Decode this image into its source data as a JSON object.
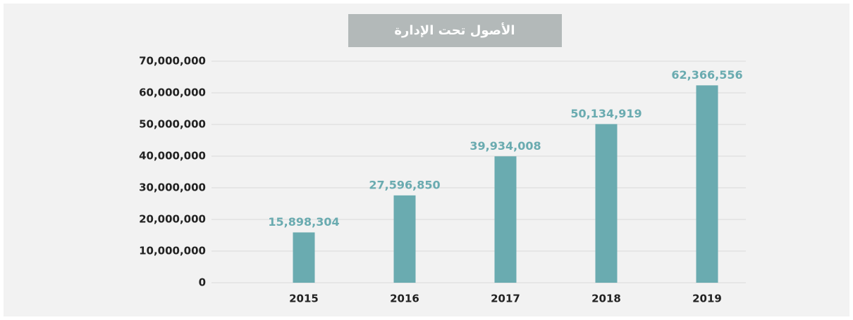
{
  "chart_data": {
    "type": "bar",
    "title": "الأصول تحت الإدارة",
    "categories": [
      "2015",
      "2016",
      "2017",
      "2018",
      "2019"
    ],
    "values": [
      15898304,
      27596850,
      39934008,
      50134919,
      62366556
    ],
    "value_labels": [
      "15,898,304",
      "27,596,850",
      "39,934,008",
      "50,134,919",
      "62,366,556"
    ],
    "color": "#6aabb0",
    "ylim": [
      0,
      70000000
    ],
    "yticks": [
      {
        "value": 0,
        "label": "0"
      },
      {
        "value": 10000000,
        "label": "10,000,000"
      },
      {
        "value": 20000000,
        "label": "20,000,000"
      },
      {
        "value": 30000000,
        "label": "30,000,000"
      },
      {
        "value": 40000000,
        "label": "40,000,000"
      },
      {
        "value": 50000000,
        "label": "50,000,000"
      },
      {
        "value": 60000000,
        "label": "60,000,000"
      },
      {
        "value": 70000000,
        "label": "70,000,000"
      }
    ],
    "grid": true
  }
}
